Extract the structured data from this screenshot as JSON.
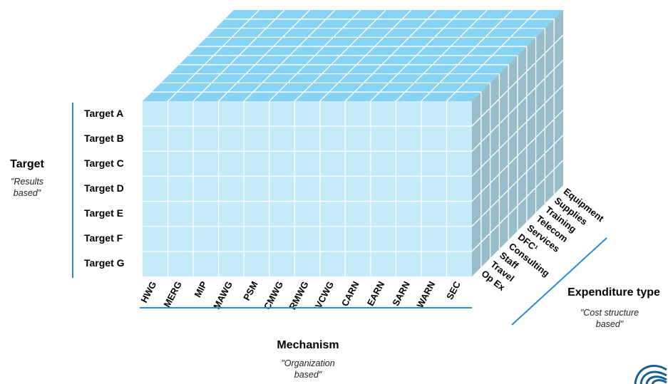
{
  "target": {
    "title": "Target",
    "subtitle_line1": "\"Results",
    "subtitle_line2": "based\"",
    "rows": [
      "Target A",
      "Target B",
      "Target C",
      "Target D",
      "Target E",
      "Target F",
      "Target G"
    ]
  },
  "mechanism": {
    "title": "Mechanism",
    "subtitle_line1": "\"Organization",
    "subtitle_line2": "based\"",
    "columns": [
      "HWG",
      "MERG",
      "MIP",
      "MAWG",
      "PSM",
      "CMWG",
      "RMWG",
      "VCWG",
      "CARN",
      "EARN",
      "SARN",
      "WARN",
      "SEC"
    ]
  },
  "expenditure": {
    "title": "Expenditure type",
    "subtitle_line1": "\"Cost structure",
    "subtitle_line2": "based\"",
    "types": [
      "Op Ex",
      "Travel",
      "Staff",
      "Consulting",
      "DFC¹",
      "Services",
      "Telecom",
      "Training",
      "Supplies",
      "Equipment"
    ]
  },
  "colors": {
    "front_face": "#c5ebfb",
    "top_face": "#86d3f3",
    "side_face": "#99bccb",
    "grid_line": "#ffffff",
    "accent_line": "#2b8ccf"
  },
  "icons": {
    "logo": "swirl-logo-icon"
  }
}
